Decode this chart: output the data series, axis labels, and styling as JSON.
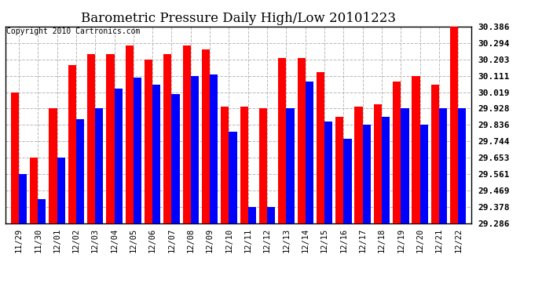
{
  "title": "Barometric Pressure Daily High/Low 20101223",
  "copyright": "Copyright 2010 Cartronics.com",
  "dates": [
    "11/29",
    "11/30",
    "12/01",
    "12/02",
    "12/03",
    "12/04",
    "12/05",
    "12/06",
    "12/07",
    "12/08",
    "12/09",
    "12/10",
    "12/11",
    "12/12",
    "12/13",
    "12/14",
    "12/15",
    "12/16",
    "12/17",
    "12/18",
    "12/19",
    "12/20",
    "12/21",
    "12/22"
  ],
  "highs": [
    30.019,
    29.653,
    29.928,
    30.17,
    30.23,
    30.23,
    30.28,
    30.203,
    30.23,
    30.28,
    30.26,
    29.94,
    29.94,
    29.928,
    30.21,
    30.21,
    30.13,
    29.88,
    29.94,
    29.95,
    30.08,
    30.111,
    30.06,
    30.386
  ],
  "lows": [
    29.561,
    29.42,
    29.653,
    29.87,
    29.928,
    30.04,
    30.1,
    30.06,
    30.01,
    30.111,
    30.12,
    29.8,
    29.378,
    29.378,
    29.928,
    30.08,
    29.855,
    29.76,
    29.836,
    29.88,
    29.928,
    29.836,
    29.928,
    29.928
  ],
  "high_color": "#ff0000",
  "low_color": "#0000ff",
  "bg_color": "#ffffff",
  "grid_color": "#b8b8b8",
  "yticks": [
    29.286,
    29.378,
    29.469,
    29.561,
    29.653,
    29.744,
    29.836,
    29.928,
    30.019,
    30.111,
    30.203,
    30.294,
    30.386
  ],
  "ylim_min": 29.286,
  "ylim_max": 30.386,
  "bar_width": 0.42,
  "title_fontsize": 12,
  "copyright_fontsize": 7,
  "tick_fontsize": 7.5,
  "ytick_fontsize": 8
}
